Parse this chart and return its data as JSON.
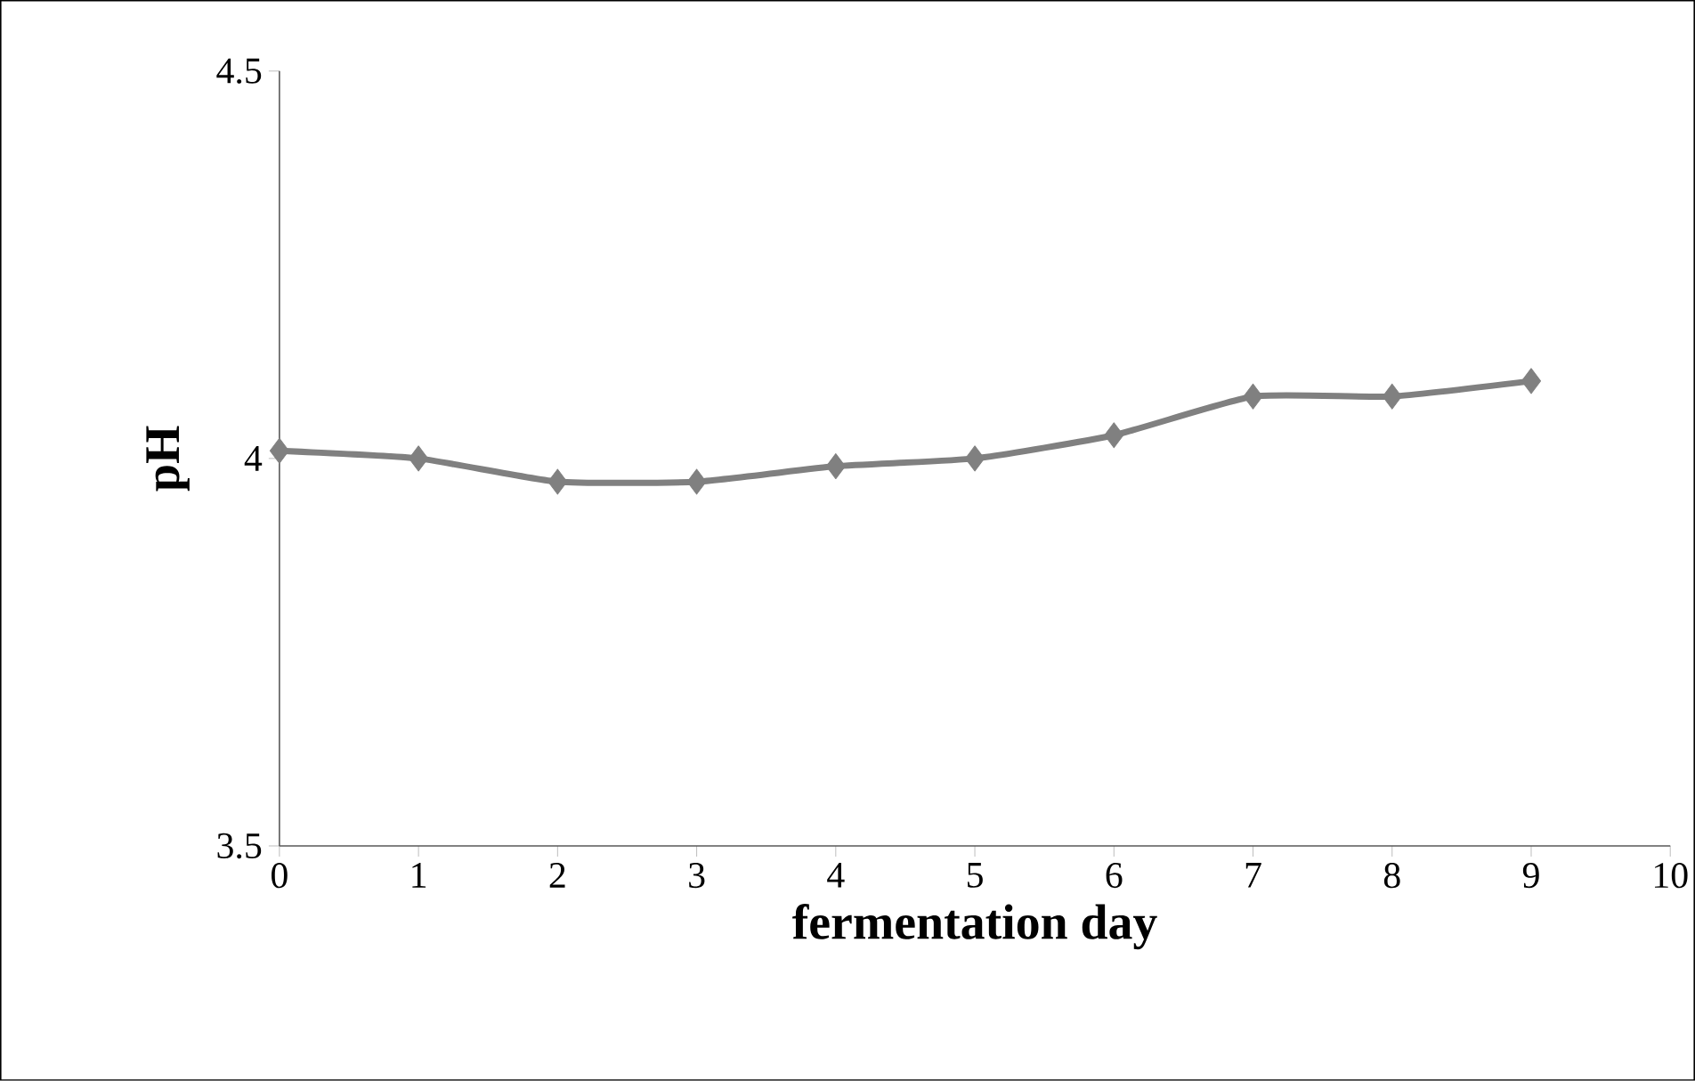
{
  "chart_data": {
    "type": "line",
    "xlabel": "fermentation day",
    "ylabel": "pH",
    "x": [
      0,
      1,
      2,
      3,
      4,
      5,
      6,
      7,
      8,
      9
    ],
    "series": [
      {
        "color": "#808080",
        "values": [
          4.01,
          4.0,
          3.97,
          3.97,
          3.99,
          4.0,
          4.03,
          4.08,
          4.08,
          4.1
        ]
      }
    ],
    "xlim": [
      0,
      10
    ],
    "xticks": [
      0,
      1,
      2,
      3,
      4,
      5,
      6,
      7,
      8,
      9,
      10
    ],
    "ylim": [
      3.5,
      4.5
    ],
    "yticks": [
      3.5,
      {
        "value": 4,
        "label": "4"
      },
      4.5
    ],
    "marker": "diamond"
  }
}
